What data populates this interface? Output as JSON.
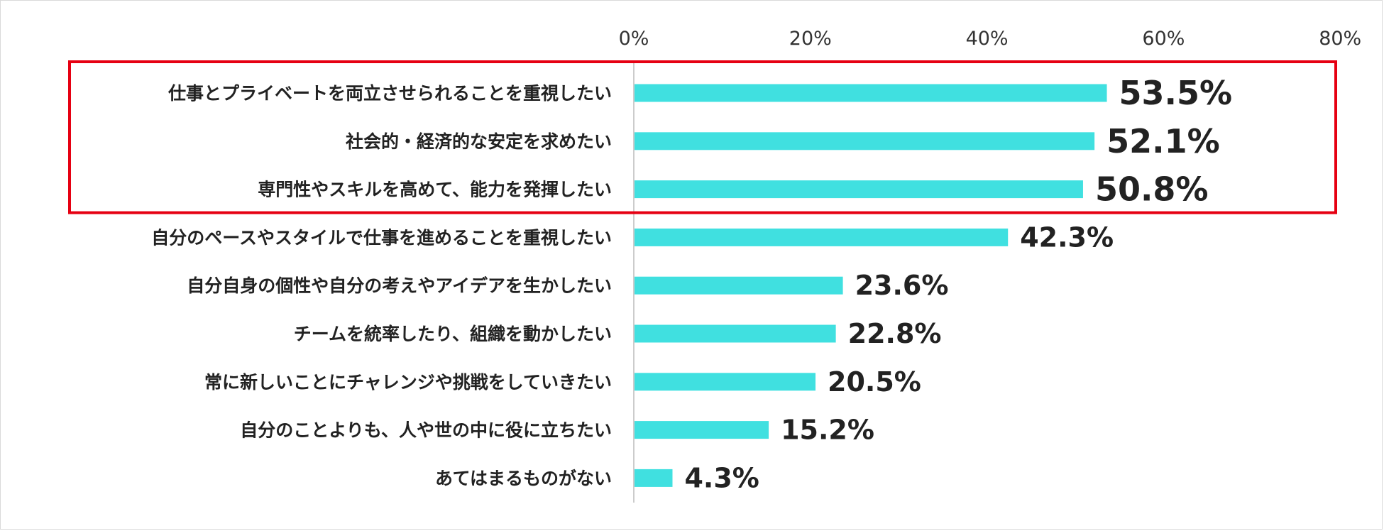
{
  "chart_data": {
    "type": "bar",
    "orientation": "horizontal",
    "categories": [
      "仕事とプライベートを両立させられることを重視したい",
      "社会的・経済的な安定を求めたい",
      "専門性やスキルを高めて、能力を発揮したい",
      "自分のペースやスタイルで仕事を進めることを重視したい",
      "自分自身の個性や自分の考えやアイデアを生かしたい",
      "チームを統率したり、組織を動かしたい",
      "常に新しいことにチャレンジや挑戦をしていきたい",
      "自分のことよりも、人や世の中に役に立ちたい",
      "あてはまるものがない"
    ],
    "values": [
      53.5,
      52.1,
      50.8,
      42.3,
      23.6,
      22.8,
      20.5,
      15.2,
      4.3
    ],
    "data_labels": [
      "53.5%",
      "52.1%",
      "50.8%",
      "42.3%",
      "23.6%",
      "22.8%",
      "20.5%",
      "15.2%",
      "4.3%"
    ],
    "xlim": [
      0,
      80
    ],
    "xticks": [
      0,
      20,
      40,
      60,
      80
    ],
    "xtick_labels": [
      "0%",
      "20%",
      "40%",
      "60%",
      "80%"
    ],
    "x_axis_position": "top",
    "grid": false,
    "highlight": {
      "categories": [
        0,
        1,
        2
      ],
      "color": "#e60012"
    },
    "title": "",
    "xlabel": "",
    "ylabel": ""
  },
  "colors": {
    "bar": "#40e0e0",
    "axis": "#cccccc",
    "text": "#222222",
    "highlight_box": "#e60012"
  }
}
